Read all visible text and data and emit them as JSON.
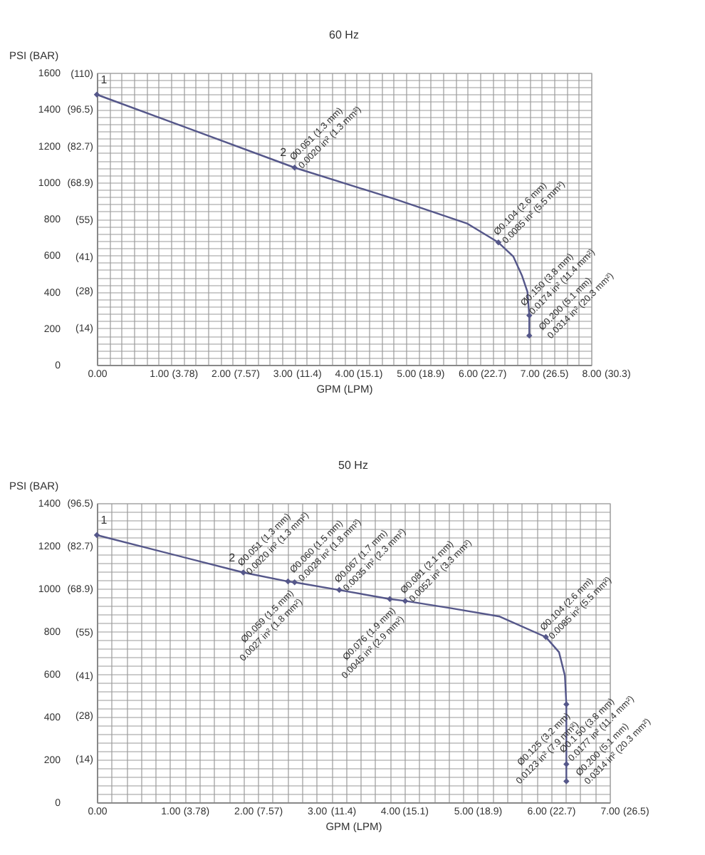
{
  "chart_data": [
    {
      "type": "line",
      "title": "60 Hz",
      "xlabel": "GPM (LPM)",
      "ylabel": "PSI (BAR)",
      "grid": true,
      "xlim": [
        0,
        8
      ],
      "ylim": [
        0,
        1600
      ],
      "x2lim": [
        0,
        30.3
      ],
      "y2lim": [
        0,
        110.3
      ],
      "xticks": [
        {
          "value": 0,
          "label": "0.00"
        },
        {
          "value": 1,
          "label": "1.00"
        },
        {
          "value": 2,
          "label": "2.00"
        },
        {
          "value": 3,
          "label": "3.00"
        },
        {
          "value": 4,
          "label": "4.00"
        },
        {
          "value": 5,
          "label": "5.00"
        },
        {
          "value": 6,
          "label": "6.00"
        },
        {
          "value": 7,
          "label": "7.00"
        },
        {
          "value": 8,
          "label": "8.00"
        }
      ],
      "x2ticks": [
        {
          "value": 3.78,
          "label": "(3.78)"
        },
        {
          "value": 7.57,
          "label": "(7.57)"
        },
        {
          "value": 11.4,
          "label": "(11.4)"
        },
        {
          "value": 15.1,
          "label": "(15.1)"
        },
        {
          "value": 18.9,
          "label": "(18.9)"
        },
        {
          "value": 22.7,
          "label": "(22.7)"
        },
        {
          "value": 26.5,
          "label": "(26.5)"
        },
        {
          "value": 30.3,
          "label": "(30.3)"
        }
      ],
      "yticks": [
        0,
        200,
        400,
        600,
        800,
        1000,
        1200,
        1400,
        1600
      ],
      "y2ticks": [
        {
          "value": 14,
          "label": "(14)"
        },
        {
          "value": 28,
          "label": "(28)"
        },
        {
          "value": 41,
          "label": "(41)"
        },
        {
          "value": 55,
          "label": "(55)"
        },
        {
          "value": 68.9,
          "label": "(68.9)"
        },
        {
          "value": 82.7,
          "label": "(82.7)"
        },
        {
          "value": 96.5,
          "label": "(96.5)"
        },
        {
          "value": 110,
          "label": "(110)"
        }
      ],
      "series": [
        {
          "color": "#55578a",
          "marker": "none",
          "x": [
            0,
            3.2,
            4.85,
            6.0,
            6.5,
            6.74,
            6.88,
            6.97,
            7.0,
            7.0
          ],
          "values": [
            1480,
            1080,
            905,
            773,
            670,
            594,
            490,
            400,
            270,
            160
          ]
        },
        {
          "type": "scatter",
          "color": "#55578a",
          "marker": "diamond",
          "x": [
            0,
            3.2,
            6.5,
            7.0,
            7.0
          ],
          "values": [
            1480,
            1080,
            670,
            270,
            160
          ]
        }
      ],
      "annotations": [
        {
          "text": "1",
          "x": 0,
          "y": 1480
        },
        {
          "text": "2",
          "x": 3.2,
          "y": 1080
        },
        {
          "text": "Ø0.051 (1.3 mm)\n0.0020 in² (1.3 mm²)",
          "x": 3.2,
          "y": 1080
        },
        {
          "text": "Ø0.104 (2.6 mm)\n0.0085 in² (5.5 mm²)",
          "x": 6.5,
          "y": 670
        },
        {
          "text": "Ø0.150 (3.8 mm)\n0.0174 in² (11.4 mm²)",
          "x": 7.0,
          "y": 270
        },
        {
          "text": "Ø0.200 (5.1 mm)\n0.0314 in² (20.3 mm²)",
          "x": 7.0,
          "y": 160
        }
      ]
    },
    {
      "type": "line",
      "title": "50 Hz",
      "xlabel": "GPM (LPM)",
      "ylabel": "PSI  (BAR)",
      "grid": true,
      "xlim": [
        0,
        7
      ],
      "ylim": [
        0,
        1400
      ],
      "x2lim": [
        0,
        26.5
      ],
      "y2lim": [
        0,
        96.53
      ],
      "xticks": [
        {
          "value": 0,
          "label": "0.00"
        },
        {
          "value": 1,
          "label": "1.00"
        },
        {
          "value": 2,
          "label": "2.00"
        },
        {
          "value": 3,
          "label": "3.00"
        },
        {
          "value": 4,
          "label": "4.00"
        },
        {
          "value": 5,
          "label": "5.00"
        },
        {
          "value": 6,
          "label": "6.00"
        },
        {
          "value": 7,
          "label": "7.00"
        }
      ],
      "x2ticks": [
        {
          "value": 3.78,
          "label": "(3.78)"
        },
        {
          "value": 7.57,
          "label": "(7.57)"
        },
        {
          "value": 11.4,
          "label": "(11.4)"
        },
        {
          "value": 15.1,
          "label": "(15.1)"
        },
        {
          "value": 18.9,
          "label": "(18.9)"
        },
        {
          "value": 22.7,
          "label": "(22.7)"
        },
        {
          "value": 26.5,
          "label": "(26.5)"
        }
      ],
      "yticks": [
        0,
        200,
        400,
        600,
        800,
        1000,
        1200,
        1400
      ],
      "y2ticks": [
        {
          "value": 14,
          "label": "(14)"
        },
        {
          "value": 28,
          "label": "(28)"
        },
        {
          "value": 41,
          "label": "(41)"
        },
        {
          "value": 55,
          "label": "(55)"
        },
        {
          "value": 68.9,
          "label": "(68.9)"
        },
        {
          "value": 82.7,
          "label": "(82.7)"
        },
        {
          "value": 96.5,
          "label": "(96.5)"
        }
      ],
      "series": [
        {
          "color": "#55578a",
          "marker": "none",
          "x": [
            0,
            2.0,
            2.61,
            2.7,
            3.31,
            4.0,
            4.21,
            4.85,
            5.5,
            6.13,
            6.31,
            6.39,
            6.41,
            6.41,
            6.41
          ],
          "values": [
            1250,
            1075,
            1033,
            1029,
            993,
            951,
            942,
            907,
            869,
            773,
            702,
            593,
            458,
            178,
            98
          ]
        },
        {
          "type": "scatter",
          "color": "#55578a",
          "marker": "diamond",
          "x": [
            0,
            2.0,
            2.61,
            2.7,
            3.31,
            4.0,
            4.21,
            6.13,
            6.41,
            6.41,
            6.41
          ],
          "values": [
            1250,
            1075,
            1033,
            1029,
            993,
            951,
            942,
            773,
            458,
            178,
            98
          ]
        }
      ],
      "annotations": [
        {
          "text": "1",
          "x": 0,
          "y": 1250
        },
        {
          "text": "2",
          "x": 2.0,
          "y": 1075
        },
        {
          "text": "Ø0.051 (1.3 mm)\n0.0020 in² (1.3 mm²)",
          "x": 2.0,
          "y": 1075
        },
        {
          "text": "Ø0.059 (1.5 mm)\n0.0027 in² (1.8 mm²)",
          "x": 2.61,
          "y": 1033
        },
        {
          "text": "Ø0.060 (1.5 mm)\n0.0028 in² (1.8 mm²)",
          "x": 2.7,
          "y": 1029
        },
        {
          "text": "Ø0.067 (1.7 mm)\n0.0035 in² (2.3 mm²)",
          "x": 3.31,
          "y": 993
        },
        {
          "text": "Ø0.076 (1.9 mm)\n0.0045 in² (2.9 mm²)",
          "x": 4.0,
          "y": 951
        },
        {
          "text": "Ø0.081 (2.1 mm)\n0.0052 in² (3.3 mm²)",
          "x": 4.21,
          "y": 942
        },
        {
          "text": "Ø0.104 (2.6 mm)\n0.0085 in² (5.5 mm²)",
          "x": 6.13,
          "y": 773
        },
        {
          "text": "Ø0.125 (3.2 mm)\n0.0123 in² (7.9 mm²)",
          "x": 6.41,
          "y": 458
        },
        {
          "text": "Ø0.1 50 (3.8 mm)\n0.0177 in² (11.4 mm²)",
          "x": 6.41,
          "y": 178
        },
        {
          "text": "Ø0.200 (5.1 mm)\n0.0314 in² (20.3 mm²)",
          "x": 6.41,
          "y": 98
        }
      ]
    }
  ]
}
